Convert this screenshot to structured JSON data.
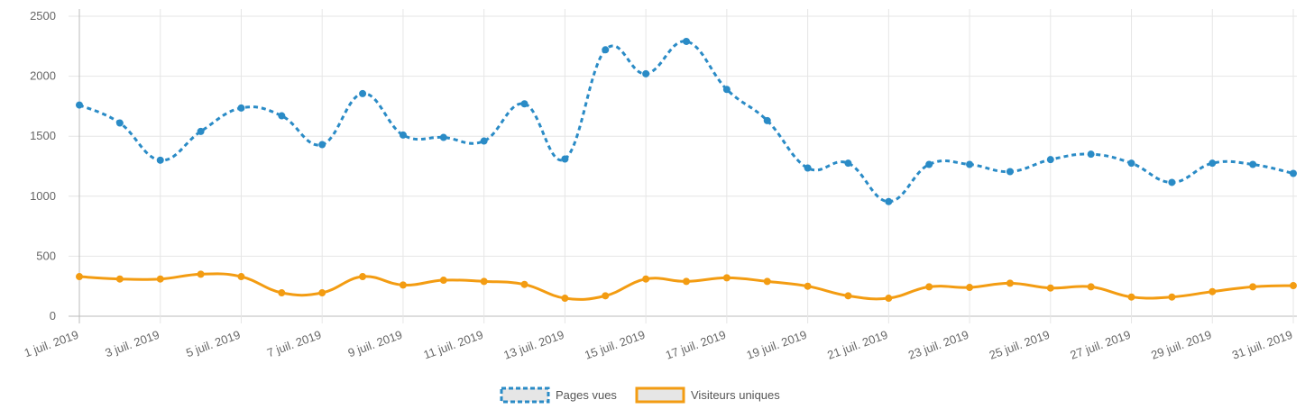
{
  "chart_data": {
    "type": "line",
    "x": [
      "1 juil. 2019",
      "2 juil. 2019",
      "3 juil. 2019",
      "4 juil. 2019",
      "5 juil. 2019",
      "6 juil. 2019",
      "7 juil. 2019",
      "8 juil. 2019",
      "9 juil. 2019",
      "10 juil. 2019",
      "11 juil. 2019",
      "12 juil. 2019",
      "13 juil. 2019",
      "14 juil. 2019",
      "15 juil. 2019",
      "16 juil. 2019",
      "17 juil. 2019",
      "18 juil. 2019",
      "19 juil. 2019",
      "20 juil. 2019",
      "21 juil. 2019",
      "22 juil. 2019",
      "23 juil. 2019",
      "24 juil. 2019",
      "25 juil. 2019",
      "26 juil. 2019",
      "27 juil. 2019",
      "28 juil. 2019",
      "29 juil. 2019",
      "30 juil. 2019",
      "31 juil. 2019"
    ],
    "x_tick_labels": [
      "1 juil. 2019",
      "3 juil. 2019",
      "5 juil. 2019",
      "7 juil. 2019",
      "9 juil. 2019",
      "11 juil. 2019",
      "13 juil. 2019",
      "15 juil. 2019",
      "17 juil. 2019",
      "19 juil. 2019",
      "21 juil. 2019",
      "23 juil. 2019",
      "25 juil. 2019",
      "27 juil. 2019",
      "29 juil. 2019",
      "31 juil. 2019"
    ],
    "y_ticks": [
      "0",
      "500",
      "1000",
      "1500",
      "2000",
      "2500"
    ],
    "ylim": [
      0,
      2500
    ],
    "grid": true,
    "legend_position": "bottom",
    "series": [
      {
        "name": "Pages vues",
        "color": "#2a8bc6",
        "style": "dashed",
        "values": [
          1760,
          1610,
          1300,
          1540,
          1735,
          1670,
          1430,
          1855,
          1510,
          1490,
          1460,
          1770,
          1310,
          2220,
          2020,
          2290,
          1890,
          1630,
          1235,
          1275,
          955,
          1265,
          1265,
          1205,
          1305,
          1350,
          1275,
          1115,
          1275,
          1265,
          1190
        ]
      },
      {
        "name": "Visiteurs uniques",
        "color": "#f39c12",
        "style": "solid",
        "values": [
          330,
          310,
          310,
          350,
          330,
          195,
          195,
          330,
          260,
          300,
          290,
          265,
          150,
          170,
          310,
          290,
          320,
          290,
          250,
          170,
          150,
          245,
          240,
          275,
          235,
          245,
          160,
          160,
          205,
          245,
          255
        ]
      }
    ]
  }
}
